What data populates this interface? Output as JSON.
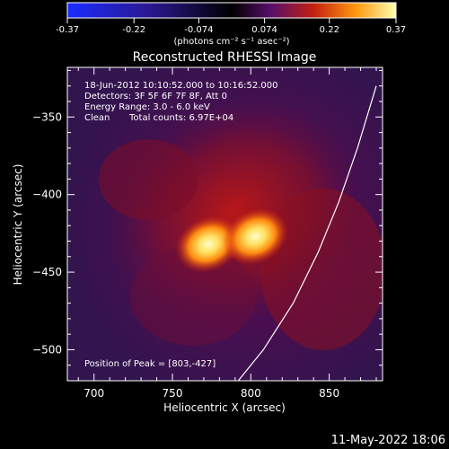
{
  "colorbar": {
    "ticks": [
      "-0.37",
      "-0.22",
      "-0.074",
      "0.074",
      "0.22",
      "0.37"
    ],
    "unit_label": "(photons cm⁻² s⁻¹ asec⁻²)",
    "range": [
      -0.37,
      0.37
    ]
  },
  "image_info": {
    "title": "Reconstructed RHESSI Image",
    "time_range": "18-Jun-2012 10:10:52.000 to 10:16:52.000",
    "detectors": "Detectors: 3F 5F 6F 7F 8F, Att 0",
    "energy_range": "Energy Range: 3.0 - 6.0 keV",
    "clean_label": "Clean",
    "total_counts": "Total counts: 6.97E+04",
    "peak_position": "Position of Peak = [803,-427]"
  },
  "footer_date": "11-May-2022 18:06",
  "chart_data": {
    "type": "heatmap",
    "title": "Reconstructed RHESSI Image",
    "xlabel": "Heliocentric X (arcsec)",
    "ylabel": "Heliocentric Y (arcsec)",
    "xlim": [
      683,
      884
    ],
    "ylim": [
      -520,
      -318
    ],
    "xticks": [
      700,
      750,
      800,
      850
    ],
    "yticks": [
      -350,
      -400,
      -450,
      -500
    ],
    "peak": [
      803,
      -427
    ],
    "sources": [
      {
        "x": 773,
        "y": -432,
        "intensity": 0.37
      },
      {
        "x": 803,
        "y": -427,
        "intensity": 0.37
      }
    ],
    "limb_curve": [
      [
        880,
        -330
      ],
      [
        868,
        -370
      ],
      [
        856,
        -405
      ],
      [
        843,
        -437
      ],
      [
        827,
        -470
      ],
      [
        808,
        -500
      ],
      [
        792,
        -520
      ]
    ],
    "colors": {
      "low": "#2020ff",
      "mid": "#000000",
      "high": "#ffff80"
    }
  }
}
